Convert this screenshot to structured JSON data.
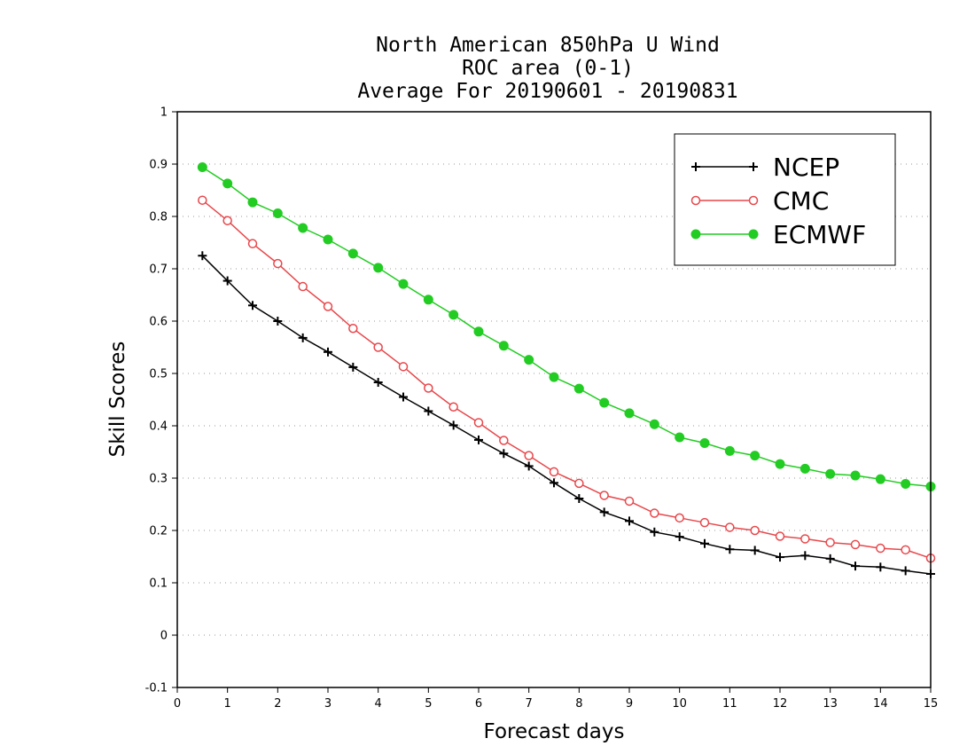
{
  "chart_data": {
    "type": "line",
    "title_lines": [
      "North American 850hPa U Wind",
      "ROC area (0-1)",
      "Average For 20190601 - 20190831"
    ],
    "xlabel": "Forecast days",
    "ylabel": "Skill Scores",
    "xlim": [
      0,
      15
    ],
    "ylim": [
      -0.1,
      1
    ],
    "x_ticks": [
      "0",
      "1",
      "2",
      "3",
      "4",
      "5",
      "6",
      "7",
      "8",
      "9",
      "10",
      "11",
      "12",
      "13",
      "14",
      "15"
    ],
    "y_ticks": [
      "-0.1",
      "0",
      "0.1",
      "0.2",
      "0.3",
      "0.4",
      "0.5",
      "0.6",
      "0.7",
      "0.8",
      "0.9",
      "1"
    ],
    "grid": "horizontal dotted",
    "legend_position": "top-right",
    "x": [
      0.5,
      1,
      1.5,
      2,
      2.5,
      3,
      3.5,
      4,
      4.5,
      5,
      5.5,
      6,
      6.5,
      7,
      7.5,
      8,
      8.5,
      9,
      9.5,
      10,
      10.5,
      11,
      11.5,
      12,
      12.5,
      13,
      13.5,
      14,
      14.5,
      15
    ],
    "series": [
      {
        "name": "NCEP",
        "color": "#000000",
        "marker": "plus",
        "values": [
          0.725,
          0.677,
          0.63,
          0.6,
          0.568,
          0.541,
          0.512,
          0.483,
          0.455,
          0.428,
          0.401,
          0.373,
          0.347,
          0.323,
          0.291,
          0.261,
          0.235,
          0.218,
          0.197,
          0.188,
          0.175,
          0.164,
          0.162,
          0.149,
          0.152,
          0.146,
          0.132,
          0.13,
          0.123,
          0.117
        ]
      },
      {
        "name": "CMC",
        "color": "#e8474b",
        "marker": "open-circle",
        "values": [
          0.831,
          0.792,
          0.748,
          0.71,
          0.666,
          0.628,
          0.586,
          0.55,
          0.513,
          0.472,
          0.436,
          0.406,
          0.372,
          0.343,
          0.312,
          0.29,
          0.267,
          0.256,
          0.233,
          0.224,
          0.215,
          0.206,
          0.2,
          0.189,
          0.184,
          0.177,
          0.173,
          0.166,
          0.163,
          0.147
        ]
      },
      {
        "name": "ECMWF",
        "color": "#22cc22",
        "marker": "filled-circle",
        "values": [
          0.894,
          0.863,
          0.827,
          0.806,
          0.778,
          0.756,
          0.729,
          0.702,
          0.671,
          0.641,
          0.612,
          0.58,
          0.553,
          0.526,
          0.493,
          0.471,
          0.444,
          0.424,
          0.403,
          0.378,
          0.367,
          0.352,
          0.343,
          0.327,
          0.318,
          0.308,
          0.305,
          0.298,
          0.289,
          0.284
        ]
      }
    ]
  }
}
